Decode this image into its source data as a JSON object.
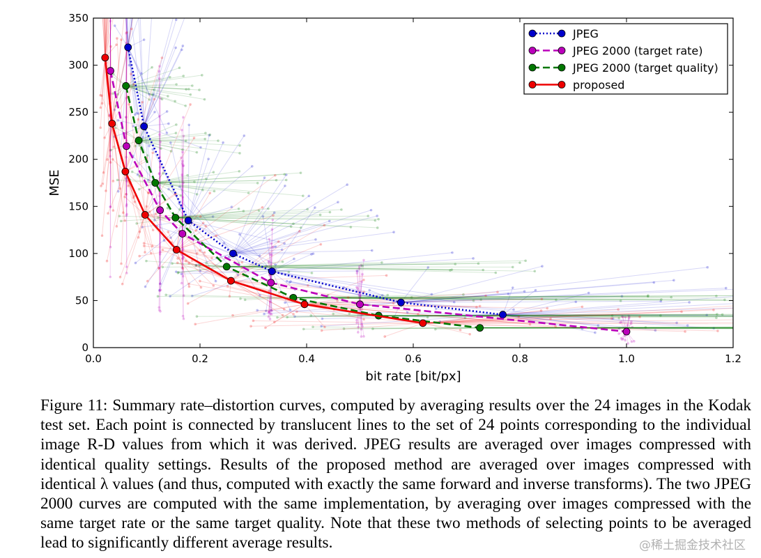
{
  "chart_data": {
    "type": "line",
    "title": "",
    "xlabel": "bit rate [bit/px]",
    "ylabel": "MSE",
    "xlim": [
      0.0,
      1.2
    ],
    "ylim": [
      0,
      350
    ],
    "xticks": [
      "0.0",
      "0.2",
      "0.4",
      "0.6",
      "0.8",
      "1.0",
      "1.2"
    ],
    "yticks": [
      "0",
      "50",
      "100",
      "150",
      "200",
      "250",
      "300",
      "350"
    ],
    "grid": false,
    "legend_position": "top-right",
    "series": [
      {
        "name": "JPEG",
        "color": "#0000cc",
        "linestyle": "dotted",
        "x": [
          0.065,
          0.095,
          0.178,
          0.262,
          0.335,
          0.577,
          0.768
        ],
        "y": [
          319,
          235,
          135,
          100,
          81,
          48,
          35
        ]
      },
      {
        "name": "JPEG 2000 (target rate)",
        "color": "#bb00bb",
        "linestyle": "dashed",
        "x": [
          0.032,
          0.062,
          0.125,
          0.167,
          0.333,
          0.5,
          1.0
        ],
        "y": [
          294,
          214,
          146,
          121,
          69,
          46,
          17
        ]
      },
      {
        "name": "JPEG 2000 (target quality)",
        "color": "#007700",
        "linestyle": "dashed",
        "x": [
          0.061,
          0.085,
          0.116,
          0.154,
          0.25,
          0.375,
          0.535,
          0.725
        ],
        "y": [
          278,
          220,
          175,
          138,
          86,
          53,
          34,
          21
        ]
      },
      {
        "name": "proposed",
        "color": "#ee0000",
        "linestyle": "solid",
        "x": [
          0.022,
          0.035,
          0.06,
          0.097,
          0.156,
          0.258,
          0.396,
          0.618
        ],
        "y": [
          308,
          238,
          187,
          141,
          104,
          71,
          46,
          26
        ]
      }
    ]
  },
  "caption": {
    "text": "Figure 11: Summary rate–distortion curves, computed by averaging results over the 24 images in the Kodak test set. Each point is connected by translucent lines to the set of 24 points corresponding to the individual image R-D values from which it was derived.  JPEG results are averaged over images compressed with identical quality settings.  Results of the proposed method are averaged over images compressed with identical λ values (and thus, computed with exactly the same forward and inverse transforms). The two JPEG 2000 curves are computed with the same implementation, by averaging over images compressed with the same target rate or the same target quality. Note that these two methods of selecting points to be averaged lead to significantly different average results."
  },
  "watermark": {
    "text": "@稀土掘金技术社区"
  }
}
